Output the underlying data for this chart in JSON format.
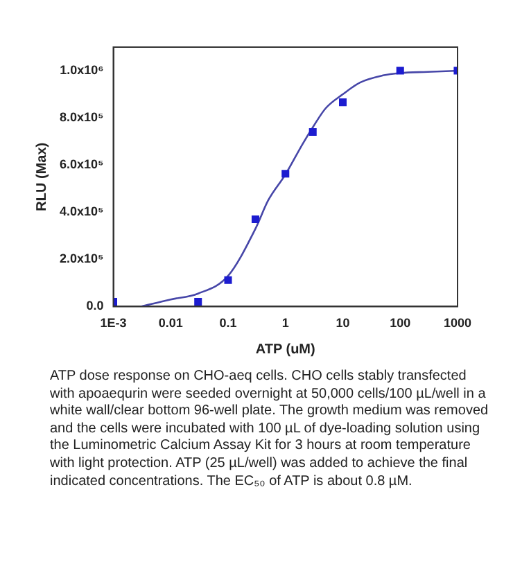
{
  "chart_data": {
    "type": "scatter",
    "xlabel": "ATP (uM)",
    "ylabel": "RLU (Max)",
    "log": "x",
    "xlim": [
      0.001,
      1000
    ],
    "xticks": [
      {
        "value": 0.001,
        "label": "1E-3"
      },
      0.01,
      0.1,
      1,
      10,
      100,
      1000
    ],
    "ylim": [
      0,
      1100000
    ],
    "yticks": [
      {
        "value": 0,
        "label": "0.0"
      },
      {
        "value": 200000,
        "label": "2.0x10⁵"
      },
      {
        "value": 400000,
        "label": "4.0x10⁵"
      },
      {
        "value": 600000,
        "label": "6.0x10⁵"
      },
      {
        "value": 800000,
        "label": "8.0x10⁵"
      },
      {
        "value": 1000000,
        "label": "1.0x10⁶"
      }
    ],
    "grid": false,
    "legend": false,
    "series": [
      {
        "marker": "square",
        "color": "#1c1cd0",
        "x": [
          0.001,
          0.03,
          0.1,
          0.3,
          1,
          3,
          10,
          100,
          1000
        ],
        "values": [
          20000,
          20000,
          112000,
          370000,
          563000,
          740000,
          866000,
          1000000,
          1000000
        ]
      },
      {
        "type": "line",
        "marker": "none",
        "color": "#4646a8",
        "x": [
          0.003,
          0.01,
          0.03,
          0.1,
          0.3,
          0.5,
          1,
          2,
          3,
          5,
          10,
          20,
          50,
          100,
          300,
          1000
        ],
        "values": [
          0,
          30000,
          55000,
          130000,
          330000,
          450000,
          560000,
          690000,
          760000,
          840000,
          900000,
          950000,
          980000,
          990000,
          995000,
          1000000
        ]
      }
    ],
    "annotations": [
      "ATP dose response on CHO-aeq cells. CHO cells stably transfected with apoaequrin were seeded overnight at 50,000 cells/100 µL/well in a white wall/clear bottom 96-well plate. The growth medium was removed and the cells were incubated with 100 µL of dye-loading solution using the Luminometric Calcium Assay Kit for 3 hours at room temperature with light protection. ATP (25 µL/well) was added to achieve the final indicated concentrations. The EC₅₀ of ATP is about 0.8 µM."
    ]
  }
}
